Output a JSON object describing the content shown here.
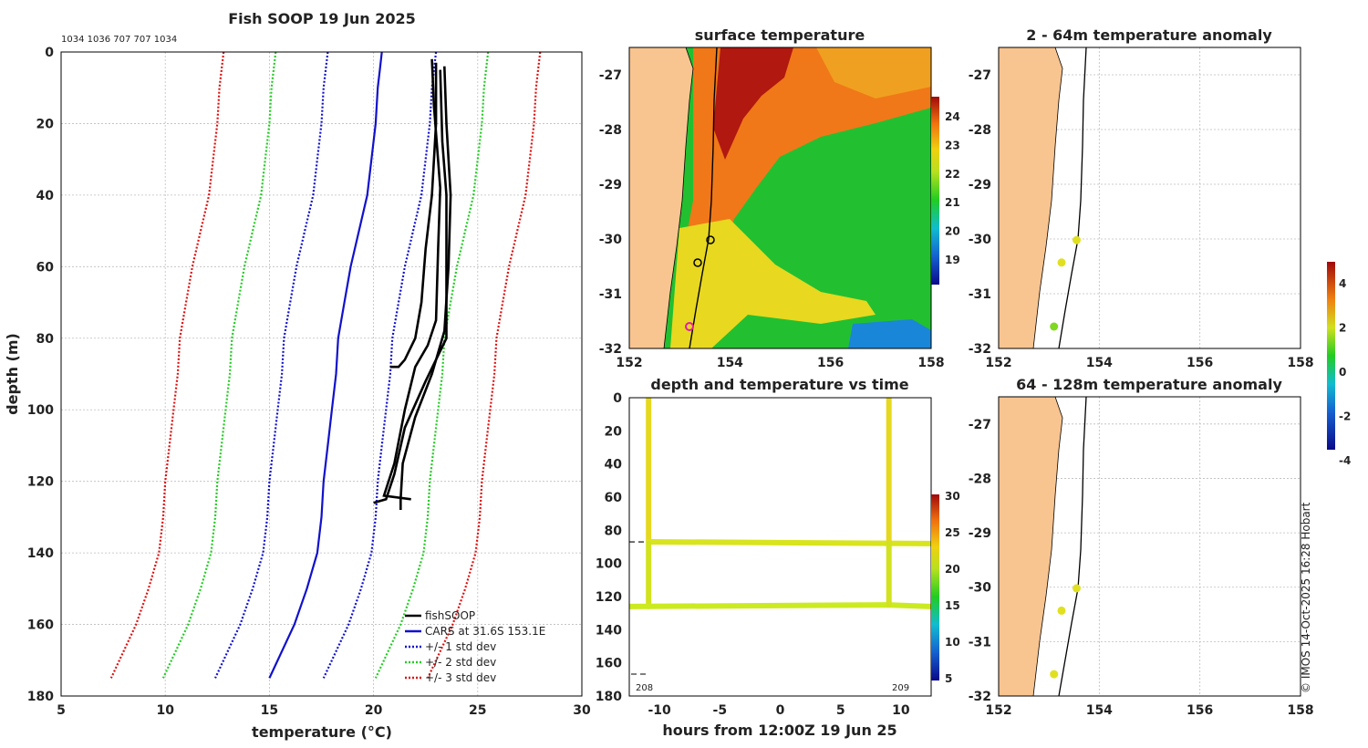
{
  "chart_data": [
    {
      "type": "line",
      "title": "Fish SOOP 19 Jun 2025",
      "subtitle": "1034 1036 707 707 1034",
      "xlabel": "temperature (°C)",
      "ylabel": "depth (m)",
      "xlim": [
        5,
        30
      ],
      "ylim": [
        0,
        180
      ],
      "xticks": [
        "5",
        "10",
        "15",
        "20",
        "25",
        "30"
      ],
      "yticks": [
        "0",
        "20",
        "40",
        "60",
        "80",
        "100",
        "120",
        "140",
        "160",
        "180"
      ],
      "legend": [
        "fishSOOP",
        "CARS at 31.6S 153.1E",
        "+/- 1 std dev",
        "+/- 2 std dev",
        "+/- 3 std dev"
      ],
      "cars_depth": [
        0,
        5,
        10,
        20,
        30,
        40,
        50,
        60,
        70,
        80,
        90,
        100,
        110,
        120,
        130,
        140,
        150,
        160,
        175
      ],
      "cars_mean": [
        20.4,
        20.3,
        20.2,
        20.1,
        19.9,
        19.7,
        19.3,
        18.9,
        18.6,
        18.3,
        18.2,
        18.0,
        17.8,
        17.6,
        17.5,
        17.3,
        16.8,
        16.2,
        15.0
      ],
      "std_offsets": [
        2.6,
        5.1,
        7.6
      ],
      "std_colors": [
        "#1111cc",
        "#22cc22",
        "#dd1111"
      ],
      "fish_series": [
        {
          "name": "fishSOOP",
          "points": [
            [
              23.0,
              3
            ],
            [
              23.0,
              20
            ],
            [
              22.8,
              40
            ],
            [
              22.5,
              55
            ],
            [
              22.3,
              70
            ],
            [
              22.0,
              80
            ],
            [
              21.5,
              86
            ],
            [
              21.2,
              88
            ],
            [
              20.8,
              88
            ]
          ]
        },
        {
          "name": "fishSOOP",
          "points": [
            [
              23.2,
              5
            ],
            [
              23.3,
              25
            ],
            [
              23.5,
              40
            ],
            [
              23.5,
              60
            ],
            [
              23.5,
              80
            ],
            [
              22.5,
              92
            ],
            [
              21.5,
              105
            ],
            [
              21.0,
              118
            ],
            [
              20.6,
              125
            ],
            [
              20.0,
              126
            ]
          ]
        },
        {
          "name": "fishSOOP",
          "points": [
            [
              22.8,
              2
            ],
            [
              22.9,
              15
            ],
            [
              23.2,
              38
            ],
            [
              23.1,
              55
            ],
            [
              23.0,
              75
            ],
            [
              22.6,
              82
            ],
            [
              22.0,
              88
            ],
            [
              21.5,
              100
            ],
            [
              21.0,
              115
            ],
            [
              20.5,
              124
            ],
            [
              21.8,
              125
            ]
          ]
        },
        {
          "name": "fishSOOP",
          "points": [
            [
              23.4,
              4
            ],
            [
              23.5,
              20
            ],
            [
              23.7,
              40
            ],
            [
              23.6,
              60
            ],
            [
              23.4,
              78
            ],
            [
              22.8,
              90
            ],
            [
              22.0,
              102
            ],
            [
              21.4,
              115
            ],
            [
              21.3,
              125
            ],
            [
              21.3,
              128
            ]
          ]
        }
      ]
    },
    {
      "type": "heatmap",
      "title": "surface temperature",
      "xlim": [
        152,
        158
      ],
      "ylim": [
        -32,
        -26.5
      ],
      "xticks": [
        "152",
        "154",
        "156",
        "158"
      ],
      "yticks": [
        "-27",
        "-28",
        "-29",
        "-30",
        "-31",
        "-32"
      ],
      "colorbar_ticks": [
        "24",
        "23",
        "22",
        "21",
        "20",
        "19"
      ]
    },
    {
      "type": "scatter",
      "title": "depth and temperature vs time",
      "xlabel": "hours from 12:00Z 19 Jun 25",
      "xlim": [
        -12.5,
        12.5
      ],
      "ylim": [
        0,
        180
      ],
      "xticks": [
        "-10",
        "-5",
        "0",
        "5",
        "10"
      ],
      "yticks": [
        "0",
        "20",
        "40",
        "60",
        "80",
        "100",
        "120",
        "140",
        "160",
        "180"
      ],
      "day_labels": [
        "208",
        "209"
      ],
      "colorbar_ticks": [
        "30",
        "25",
        "20",
        "15",
        "10",
        "5"
      ],
      "reference_depth": 87
    },
    {
      "type": "scatter",
      "title": "2 - 64m temperature anomaly",
      "xlim": [
        152,
        158
      ],
      "ylim": [
        -32,
        -26.5
      ],
      "xticks": [
        "152",
        "154",
        "156",
        "158"
      ],
      "yticks": [
        "-27",
        "-28",
        "-29",
        "-30",
        "-31",
        "-32"
      ],
      "points": [
        {
          "lon": 153.55,
          "lat": -30.02,
          "v": 2.0
        },
        {
          "lon": 153.25,
          "lat": -30.43,
          "v": 1.8
        },
        {
          "lon": 153.1,
          "lat": -31.6,
          "v": 0.8
        }
      ]
    },
    {
      "type": "scatter",
      "title": "64 - 128m temperature anomaly",
      "xlim": [
        152,
        158
      ],
      "ylim": [
        -32,
        -26.5
      ],
      "xticks": [
        "152",
        "154",
        "156",
        "158"
      ],
      "yticks": [
        "-27",
        "-28",
        "-29",
        "-30",
        "-31",
        "-32"
      ],
      "points": [
        {
          "lon": 153.55,
          "lat": -30.02,
          "v": 1.8
        },
        {
          "lon": 153.25,
          "lat": -30.43,
          "v": 1.6
        },
        {
          "lon": 153.1,
          "lat": -31.6,
          "v": 2.4
        }
      ]
    }
  ],
  "anomaly_colorbar_ticks": [
    "4",
    "2",
    "0",
    "-2",
    "-4"
  ],
  "credit": "© IMOS 14-Oct-2025 16:28 Hobart",
  "colors": {
    "land": "#f8c490",
    "fish": "#000000",
    "cars": "#1111cc"
  }
}
